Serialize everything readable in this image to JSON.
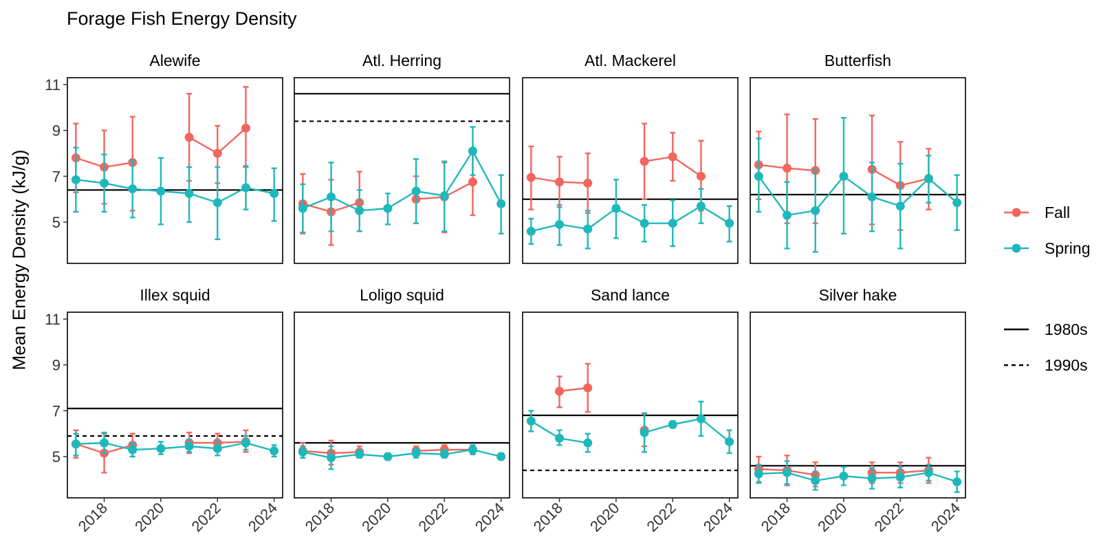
{
  "chart_data": {
    "type": "line",
    "title": "Forage Fish Energy Density",
    "ylabel": "Mean Energy Density (kJ/g)",
    "xlabel": "",
    "xlim": [
      2016.7,
      2024.3
    ],
    "ylim": [
      3.2,
      11.3
    ],
    "x_ticks": [
      2018,
      2020,
      2022,
      2024
    ],
    "y_ticks": [
      5,
      7,
      9,
      11
    ],
    "legend": {
      "position": "right",
      "seasons": [
        {
          "name": "Fall",
          "color": "#F2665E"
        },
        {
          "name": "Spring",
          "color": "#1FB8BA"
        }
      ],
      "decades": [
        {
          "name": "1980s",
          "dash": "solid"
        },
        {
          "name": "1990s",
          "dash": "dashed"
        }
      ]
    },
    "panels": [
      {
        "name": "Alewife",
        "ref1980s": 6.4,
        "ref1990s": null,
        "series": [
          {
            "name": "Fall",
            "points": [
              {
                "x": 2017,
                "y": 7.8,
                "lo": 6.3,
                "hi": 9.3
              },
              {
                "x": 2018,
                "y": 7.4,
                "lo": 5.8,
                "hi": 9.0
              },
              {
                "x": 2019,
                "y": 7.6,
                "lo": 5.5,
                "hi": 9.6
              },
              {
                "x": 2021,
                "y": 8.7,
                "lo": 6.8,
                "hi": 10.6
              },
              {
                "x": 2022,
                "y": 8.0,
                "lo": 6.7,
                "hi": 9.2
              },
              {
                "x": 2023,
                "y": 9.1,
                "lo": 7.4,
                "hi": 10.9
              }
            ]
          },
          {
            "name": "Spring",
            "points": [
              {
                "x": 2017,
                "y": 6.85,
                "lo": 5.45,
                "hi": 8.25
              },
              {
                "x": 2018,
                "y": 6.7,
                "lo": 5.45,
                "hi": 7.95
              },
              {
                "x": 2019,
                "y": 6.45,
                "lo": 5.2,
                "hi": 7.7
              },
              {
                "x": 2020,
                "y": 6.35,
                "lo": 4.9,
                "hi": 7.8
              },
              {
                "x": 2021,
                "y": 6.25,
                "lo": 5.0,
                "hi": 7.4
              },
              {
                "x": 2022,
                "y": 5.85,
                "lo": 4.25,
                "hi": 7.4
              },
              {
                "x": 2023,
                "y": 6.5,
                "lo": 5.55,
                "hi": 7.45
              },
              {
                "x": 2024,
                "y": 6.25,
                "lo": 5.05,
                "hi": 7.35
              }
            ]
          }
        ]
      },
      {
        "name": "Atl. Herring",
        "ref1980s": 10.6,
        "ref1990s": 9.4,
        "series": [
          {
            "name": "Fall",
            "points": [
              {
                "x": 2017,
                "y": 5.8,
                "lo": 4.5,
                "hi": 7.1
              },
              {
                "x": 2018,
                "y": 5.45,
                "lo": 4.0,
                "hi": 6.85
              },
              {
                "x": 2019,
                "y": 5.85,
                "lo": 4.6,
                "hi": 7.2
              },
              {
                "x": 2021,
                "y": 6.0,
                "lo": 4.95,
                "hi": 7.0
              },
              {
                "x": 2022,
                "y": 6.1,
                "lo": 4.55,
                "hi": 7.6
              },
              {
                "x": 2023,
                "y": 6.75,
                "lo": 5.3,
                "hi": 8.15
              }
            ]
          },
          {
            "name": "Spring",
            "points": [
              {
                "x": 2017,
                "y": 5.6,
                "lo": 4.55,
                "hi": 6.65
              },
              {
                "x": 2018,
                "y": 6.1,
                "lo": 4.6,
                "hi": 7.6
              },
              {
                "x": 2019,
                "y": 5.5,
                "lo": 4.6,
                "hi": 6.4
              },
              {
                "x": 2020,
                "y": 5.6,
                "lo": 4.9,
                "hi": 6.25
              },
              {
                "x": 2021,
                "y": 6.35,
                "lo": 4.95,
                "hi": 7.75
              },
              {
                "x": 2022,
                "y": 6.15,
                "lo": 4.6,
                "hi": 7.65
              },
              {
                "x": 2023,
                "y": 8.1,
                "lo": 7.05,
                "hi": 9.15
              },
              {
                "x": 2024,
                "y": 5.8,
                "lo": 4.5,
                "hi": 7.05
              }
            ]
          }
        ]
      },
      {
        "name": "Atl. Mackerel",
        "ref1980s": 6.0,
        "ref1990s": null,
        "series": [
          {
            "name": "Fall",
            "points": [
              {
                "x": 2017,
                "y": 6.95,
                "lo": 5.55,
                "hi": 8.3
              },
              {
                "x": 2018,
                "y": 6.75,
                "lo": 5.65,
                "hi": 7.85
              },
              {
                "x": 2019,
                "y": 6.7,
                "lo": 5.4,
                "hi": 8.0
              },
              {
                "x": 2021,
                "y": 7.65,
                "lo": 6.0,
                "hi": 9.3
              },
              {
                "x": 2022,
                "y": 7.85,
                "lo": 6.8,
                "hi": 8.9
              },
              {
                "x": 2023,
                "y": 7.0,
                "lo": 5.5,
                "hi": 8.55
              }
            ]
          },
          {
            "name": "Spring",
            "points": [
              {
                "x": 2017,
                "y": 4.6,
                "lo": 4.05,
                "hi": 5.15
              },
              {
                "x": 2018,
                "y": 4.9,
                "lo": 4.0,
                "hi": 5.75
              },
              {
                "x": 2019,
                "y": 4.7,
                "lo": 3.85,
                "hi": 5.5
              },
              {
                "x": 2020,
                "y": 5.6,
                "lo": 4.3,
                "hi": 6.85
              },
              {
                "x": 2021,
                "y": 4.95,
                "lo": 4.15,
                "hi": 5.75
              },
              {
                "x": 2022,
                "y": 4.95,
                "lo": 3.95,
                "hi": 5.95
              },
              {
                "x": 2023,
                "y": 5.7,
                "lo": 4.95,
                "hi": 6.45
              },
              {
                "x": 2024,
                "y": 4.95,
                "lo": 4.15,
                "hi": 5.7
              }
            ]
          }
        ]
      },
      {
        "name": "Butterfish",
        "ref1980s": 6.2,
        "ref1990s": null,
        "series": [
          {
            "name": "Fall",
            "points": [
              {
                "x": 2017,
                "y": 7.5,
                "lo": 6.0,
                "hi": 8.95
              },
              {
                "x": 2018,
                "y": 7.35,
                "lo": 4.95,
                "hi": 9.7
              },
              {
                "x": 2019,
                "y": 7.25,
                "lo": 4.95,
                "hi": 9.5
              },
              {
                "x": 2021,
                "y": 7.3,
                "lo": 4.9,
                "hi": 9.65
              },
              {
                "x": 2022,
                "y": 6.6,
                "lo": 4.65,
                "hi": 8.5
              },
              {
                "x": 2023,
                "y": 6.9,
                "lo": 5.55,
                "hi": 8.2
              }
            ]
          },
          {
            "name": "Spring",
            "points": [
              {
                "x": 2017,
                "y": 7.0,
                "lo": 5.45,
                "hi": 8.65
              },
              {
                "x": 2018,
                "y": 5.3,
                "lo": 3.85,
                "hi": 6.75
              },
              {
                "x": 2019,
                "y": 5.5,
                "lo": 3.7,
                "hi": 7.3
              },
              {
                "x": 2020,
                "y": 7.0,
                "lo": 4.5,
                "hi": 9.55
              },
              {
                "x": 2021,
                "y": 6.1,
                "lo": 4.6,
                "hi": 7.6
              },
              {
                "x": 2022,
                "y": 5.7,
                "lo": 3.85,
                "hi": 7.55
              },
              {
                "x": 2023,
                "y": 6.9,
                "lo": 5.85,
                "hi": 7.9
              },
              {
                "x": 2024,
                "y": 5.85,
                "lo": 4.65,
                "hi": 7.05
              }
            ]
          }
        ]
      },
      {
        "name": "Illex squid",
        "ref1980s": 7.1,
        "ref1990s": 5.9,
        "series": [
          {
            "name": "Fall",
            "points": [
              {
                "x": 2017,
                "y": 5.55,
                "lo": 4.95,
                "hi": 6.15
              },
              {
                "x": 2018,
                "y": 5.15,
                "lo": 4.3,
                "hi": 6.0
              },
              {
                "x": 2019,
                "y": 5.5,
                "lo": 5.0,
                "hi": 6.0
              },
              {
                "x": 2021,
                "y": 5.6,
                "lo": 5.15,
                "hi": 6.05
              },
              {
                "x": 2022,
                "y": 5.6,
                "lo": 5.25,
                "hi": 6.0
              },
              {
                "x": 2023,
                "y": 5.65,
                "lo": 5.2,
                "hi": 6.15
              }
            ]
          },
          {
            "name": "Spring",
            "points": [
              {
                "x": 2017,
                "y": 5.55,
                "lo": 5.05,
                "hi": 6.0
              },
              {
                "x": 2018,
                "y": 5.6,
                "lo": 5.15,
                "hi": 6.05
              },
              {
                "x": 2019,
                "y": 5.3,
                "lo": 5.0,
                "hi": 5.6
              },
              {
                "x": 2020,
                "y": 5.35,
                "lo": 5.1,
                "hi": 5.65
              },
              {
                "x": 2021,
                "y": 5.45,
                "lo": 5.2,
                "hi": 5.75
              },
              {
                "x": 2022,
                "y": 5.35,
                "lo": 5.05,
                "hi": 5.7
              },
              {
                "x": 2023,
                "y": 5.6,
                "lo": 5.3,
                "hi": 5.9
              },
              {
                "x": 2024,
                "y": 5.25,
                "lo": 5.0,
                "hi": 5.5
              }
            ]
          }
        ]
      },
      {
        "name": "Loligo squid",
        "ref1980s": 5.6,
        "ref1990s": null,
        "series": [
          {
            "name": "Fall",
            "points": [
              {
                "x": 2017,
                "y": 5.25,
                "lo": 4.95,
                "hi": 5.6
              },
              {
                "x": 2018,
                "y": 5.15,
                "lo": 4.65,
                "hi": 5.7
              },
              {
                "x": 2019,
                "y": 5.2,
                "lo": 4.95,
                "hi": 5.45
              },
              {
                "x": 2021,
                "y": 5.25,
                "lo": 5.05,
                "hi": 5.45
              },
              {
                "x": 2022,
                "y": 5.3,
                "lo": 5.1,
                "hi": 5.5
              },
              {
                "x": 2023,
                "y": 5.3,
                "lo": 5.1,
                "hi": 5.5
              }
            ]
          },
          {
            "name": "Spring",
            "points": [
              {
                "x": 2017,
                "y": 5.2,
                "lo": 4.95,
                "hi": 5.45
              },
              {
                "x": 2018,
                "y": 4.95,
                "lo": 4.45,
                "hi": 5.45
              },
              {
                "x": 2019,
                "y": 5.1,
                "lo": 4.95,
                "hi": 5.3
              },
              {
                "x": 2020,
                "y": 5.0,
                "lo": 4.85,
                "hi": 5.15
              },
              {
                "x": 2021,
                "y": 5.15,
                "lo": 4.95,
                "hi": 5.35
              },
              {
                "x": 2022,
                "y": 5.1,
                "lo": 4.95,
                "hi": 5.3
              },
              {
                "x": 2023,
                "y": 5.3,
                "lo": 5.1,
                "hi": 5.5
              },
              {
                "x": 2024,
                "y": 5.0,
                "lo": 4.9,
                "hi": 5.15
              }
            ]
          }
        ]
      },
      {
        "name": "Sand lance",
        "ref1980s": 6.8,
        "ref1990s": 4.4,
        "series": [
          {
            "name": "Fall",
            "points": [
              {
                "x": 2018,
                "y": 7.85,
                "lo": 7.15,
                "hi": 8.5
              },
              {
                "x": 2019,
                "y": 8.0,
                "lo": 6.95,
                "hi": 9.05
              },
              {
                "x": 2021,
                "y": 6.15,
                "lo": 5.45,
                "hi": 6.85
              }
            ]
          },
          {
            "name": "Spring",
            "points": [
              {
                "x": 2017,
                "y": 6.55,
                "lo": 6.1,
                "hi": 7.0
              },
              {
                "x": 2018,
                "y": 5.8,
                "lo": 5.5,
                "hi": 6.15
              },
              {
                "x": 2019,
                "y": 5.6,
                "lo": 5.2,
                "hi": 6.0
              },
              {
                "x": 2021,
                "y": 6.05,
                "lo": 5.2,
                "hi": 6.9
              },
              {
                "x": 2022,
                "y": 6.4,
                "lo": 6.25,
                "hi": 6.55
              },
              {
                "x": 2023,
                "y": 6.65,
                "lo": 5.9,
                "hi": 7.4
              },
              {
                "x": 2024,
                "y": 5.65,
                "lo": 5.15,
                "hi": 6.15
              }
            ]
          }
        ]
      },
      {
        "name": "Silver hake",
        "ref1980s": 4.6,
        "ref1990s": null,
        "series": [
          {
            "name": "Fall",
            "points": [
              {
                "x": 2017,
                "y": 4.45,
                "lo": 3.9,
                "hi": 5.0
              },
              {
                "x": 2018,
                "y": 4.4,
                "lo": 3.75,
                "hi": 5.05
              },
              {
                "x": 2019,
                "y": 4.2,
                "lo": 3.7,
                "hi": 4.75
              },
              {
                "x": 2021,
                "y": 4.3,
                "lo": 3.85,
                "hi": 4.75
              },
              {
                "x": 2022,
                "y": 4.3,
                "lo": 3.85,
                "hi": 4.75
              },
              {
                "x": 2023,
                "y": 4.4,
                "lo": 3.85,
                "hi": 4.95
              }
            ]
          },
          {
            "name": "Spring",
            "points": [
              {
                "x": 2017,
                "y": 4.25,
                "lo": 3.85,
                "hi": 4.65
              },
              {
                "x": 2018,
                "y": 4.3,
                "lo": 3.8,
                "hi": 4.8
              },
              {
                "x": 2019,
                "y": 3.95,
                "lo": 3.55,
                "hi": 4.35
              },
              {
                "x": 2020,
                "y": 4.15,
                "lo": 3.75,
                "hi": 4.55
              },
              {
                "x": 2021,
                "y": 4.05,
                "lo": 3.6,
                "hi": 4.5
              },
              {
                "x": 2022,
                "y": 4.1,
                "lo": 3.65,
                "hi": 4.55
              },
              {
                "x": 2023,
                "y": 4.3,
                "lo": 3.95,
                "hi": 4.65
              },
              {
                "x": 2024,
                "y": 3.9,
                "lo": 3.45,
                "hi": 4.35
              }
            ]
          }
        ]
      }
    ]
  }
}
